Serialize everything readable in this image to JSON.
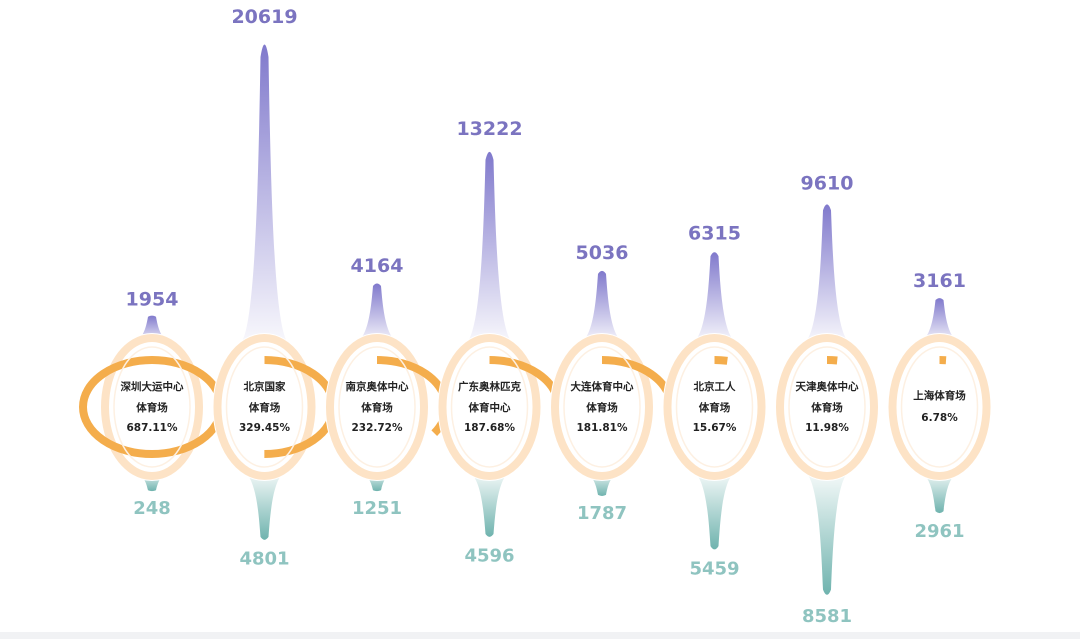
{
  "chart_data": {
    "type": "custom-spike-gauge",
    "title": "",
    "colors": {
      "upper_spike": "#8079cc",
      "upper_value": "#7b74c0",
      "lower_spike": "#6fb3ae",
      "lower_value": "#8fc4c0",
      "ring_track": "#fde3c6",
      "ring_fill": "#f4ad4c",
      "bottom_band": "#f1f2f4"
    },
    "items": [
      {
        "label_line1": "深圳大运中心",
        "label_line2": "体育场",
        "percent": "687.11%",
        "ring_fraction": 1.0,
        "upper": 1954,
        "lower": 248
      },
      {
        "label_line1": "北京国家",
        "label_line2": "体育场",
        "percent": "329.45%",
        "ring_fraction": 0.5,
        "upper": 20619,
        "lower": 4801
      },
      {
        "label_line1": "南京奥体中心",
        "label_line2": "体育场",
        "percent": "232.72%",
        "ring_fraction": 0.33,
        "upper": 4164,
        "lower": 1251
      },
      {
        "label_line1": "广东奥林匹克",
        "label_line2": "体育中心",
        "percent": "187.68%",
        "ring_fraction": 0.26,
        "upper": 13222,
        "lower": 4596
      },
      {
        "label_line1": "大连体育中心",
        "label_line2": "体育场",
        "percent": "181.81%",
        "ring_fraction": 0.25,
        "upper": 5036,
        "lower": 1787
      },
      {
        "label_line1": "北京工人",
        "label_line2": "体育场",
        "percent": "15.67%",
        "ring_fraction": 0.035,
        "upper": 6315,
        "lower": 5459
      },
      {
        "label_line1": "天津奥体中心",
        "label_line2": "体育场",
        "percent": "11.98%",
        "ring_fraction": 0.028,
        "upper": 9610,
        "lower": 8581
      },
      {
        "label_line1": "上海体育场",
        "label_line2": "",
        "percent": "6.78%",
        "ring_fraction": 0.018,
        "upper": 3161,
        "lower": 2961
      }
    ]
  }
}
